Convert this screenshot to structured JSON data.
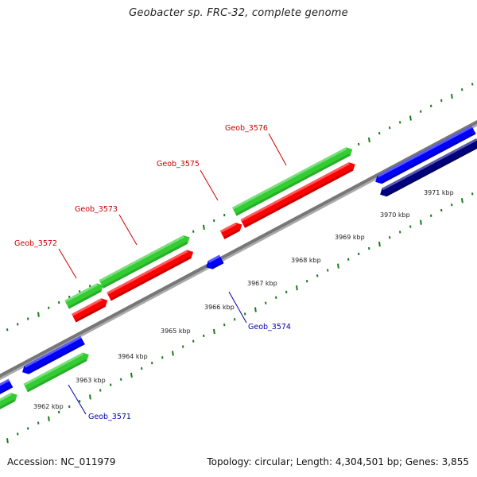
{
  "title": "Geobacter sp. FRC-32, complete genome",
  "footer": {
    "accession": "Accession: NC_011979",
    "summary": "Topology: circular; Length: 4,304,501 bp; Genes: 3,855"
  },
  "colors": {
    "green": "#33cc33",
    "red": "#ff0000",
    "blue": "#0000ff",
    "navy": "#000080",
    "backbone": "#888888",
    "tick": "#1a7a1a",
    "label_red": "#cc0000",
    "label_blue": "#0000aa"
  },
  "ticks": [
    "3962 kbp",
    "3963 kbp",
    "3964 kbp",
    "3965 kbp",
    "3966 kbp",
    "3967 kbp",
    "3968 kbp",
    "3969 kbp",
    "3970 kbp",
    "3971 kbp"
  ],
  "genes": [
    {
      "label": "Geob_3571",
      "strand": "plus"
    },
    {
      "label": "Geob_3572",
      "strand": "minus"
    },
    {
      "label": "Geob_3573",
      "strand": "minus"
    },
    {
      "label": "Geob_3574",
      "strand": "plus"
    },
    {
      "label": "Geob_3575",
      "strand": "minus"
    },
    {
      "label": "Geob_3576",
      "strand": "minus"
    }
  ]
}
